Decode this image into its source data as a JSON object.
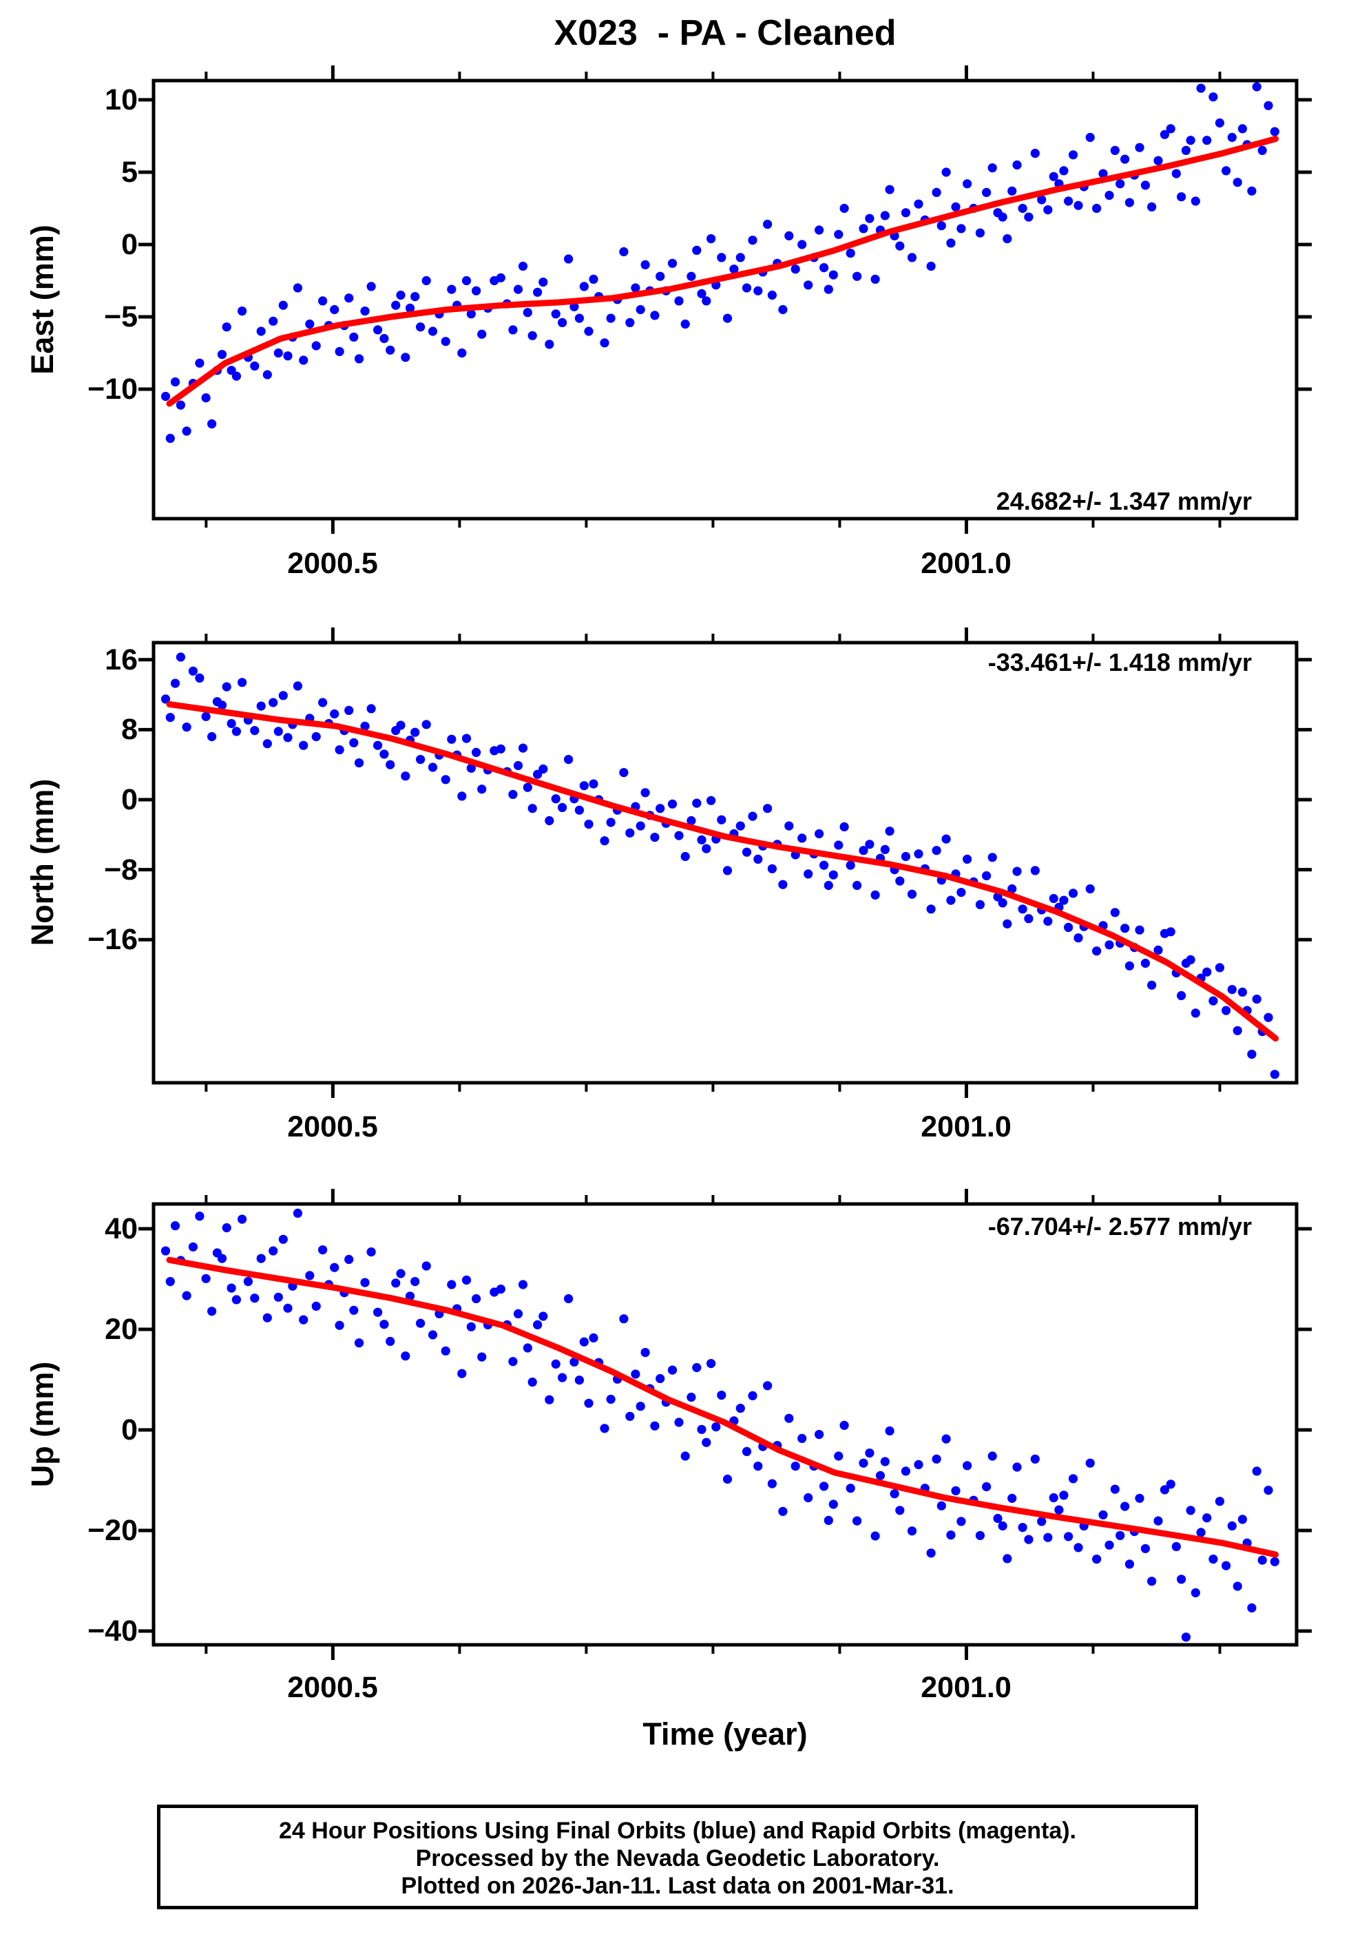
{
  "title": "X023  - PA - Cleaned",
  "colors": {
    "points": "#0000ff",
    "trend": "#ff0000",
    "frame": "#000000"
  },
  "time_axis": {
    "label": "Time (year)",
    "range": [
      2000.3585,
      2001.2606
    ],
    "ticks": [
      {
        "value": 2000.5,
        "label": "2000.5"
      },
      {
        "value": 2001.0,
        "label": "2001.0"
      }
    ],
    "minor_ticks": [
      2000.4,
      2000.6,
      2000.7,
      2000.8,
      2000.9,
      2001.1,
      2001.2
    ]
  },
  "footer": {
    "line1": "24 Hour Positions Using Final Orbits (blue) and Rapid Orbits (magenta).",
    "line2": "Processed by the Nevada Geodetic Laboratory.",
    "line3": "Plotted on 2026-Jan-11. Last data on 2001-Mar-31."
  },
  "chart_data": [
    {
      "type": "scatter",
      "name": "East",
      "ylabel": "East (mm)",
      "annotation": "24.682+/- 1.347 mm/yr",
      "annotation_position": "bottom-right",
      "ylim": [
        -18.95,
        11.33
      ],
      "yticks": [
        10,
        5,
        0,
        -5,
        -10
      ],
      "scatter": {
        "t_start": 2000.368,
        "t_step": 0.0044,
        "values": [
          -10.5,
          -13.4,
          -9.5,
          -11.1,
          -12.9,
          -9.6,
          -8.2,
          -10.6,
          -12.4,
          -8.7,
          -7.6,
          -5.7,
          -8.7,
          -9.1,
          -4.6,
          -7.8,
          -8.4,
          -6.0,
          -9.0,
          -5.3,
          -7.5,
          -4.2,
          -7.7,
          -6.4,
          -3.0,
          -8.0,
          -5.5,
          -7.0,
          -3.9,
          -5.6,
          -4.5,
          -7.4,
          -5.6,
          -3.7,
          -6.4,
          -7.9,
          -4.6,
          -2.9,
          -5.9,
          -6.5,
          -7.3,
          -4.2,
          -3.5,
          -7.8,
          -4.4,
          -3.6,
          -5.7,
          -2.5,
          -6.0,
          -4.8,
          -6.7,
          -3.1,
          -4.2,
          -7.5,
          -2.5,
          -4.8,
          -3.2,
          -6.2,
          -4.4,
          -2.5,
          -2.3,
          -4.1,
          -5.9,
          -3.1,
          -1.5,
          -4.7,
          -6.3,
          -3.3,
          -2.6,
          -6.9,
          -4.8,
          -5.4,
          -1.0,
          -4.3,
          -5.1,
          -2.9,
          -6.0,
          -2.4,
          -3.6,
          -6.8,
          -5.1,
          -3.8,
          -0.5,
          -5.4,
          -3.0,
          -4.5,
          -1.4,
          -3.2,
          -4.9,
          -2.2,
          -3.2,
          -1.3,
          -3.9,
          -5.5,
          -2.2,
          -0.4,
          -3.4,
          -3.9,
          0.4,
          -2.8,
          -0.9,
          -5.1,
          -1.7,
          -0.9,
          -3.0,
          0.3,
          -3.2,
          -1.9,
          1.4,
          -3.5,
          -1.3,
          -4.5,
          0.6,
          -1.7,
          0.0,
          -2.8,
          -0.9,
          1.0,
          -1.6,
          -3.1,
          -2.1,
          0.7,
          2.5,
          -0.6,
          -2.2,
          1.1,
          1.8,
          -2.4,
          1.0,
          2.0,
          3.8,
          0.6,
          -0.1,
          2.2,
          -0.9,
          2.8,
          1.7,
          -1.5,
          3.6,
          1.3,
          5.0,
          0.1,
          2.6,
          1.1,
          4.2,
          2.5,
          0.8,
          3.6,
          5.3,
          2.2,
          1.9,
          0.4,
          3.7,
          5.5,
          2.5,
          1.9,
          6.3,
          3.1,
          2.4,
          4.7,
          4.2,
          5.1,
          3.0,
          6.2,
          2.7,
          4.0,
          7.4,
          2.5,
          4.9,
          3.4,
          6.5,
          4.2,
          5.9,
          2.9,
          4.8,
          6.7,
          4.1,
          2.6,
          5.8,
          7.6,
          8.0,
          4.9,
          3.3,
          6.5,
          7.2,
          3.0,
          10.8,
          7.2,
          10.2,
          8.4,
          5.1,
          7.4,
          4.3,
          8.0,
          6.9,
          3.7,
          10.9,
          6.5,
          9.6,
          7.8
        ]
      },
      "trend": {
        "t": [
          2000.371,
          2000.415,
          2000.459,
          2000.503,
          2000.546,
          2000.59,
          2000.634,
          2000.678,
          2000.721,
          2000.765,
          2000.809,
          2000.852,
          2000.896,
          2000.94,
          2000.983,
          2001.027,
          2001.071,
          2001.115,
          2001.158,
          2001.202,
          2001.244
        ],
        "values": [
          -11.0,
          -8.2,
          -6.5,
          -5.6,
          -5.0,
          -4.5,
          -4.2,
          -4.0,
          -3.7,
          -3.1,
          -2.3,
          -1.5,
          -0.4,
          0.9,
          1.9,
          2.9,
          3.8,
          4.6,
          5.4,
          6.3,
          7.3
        ]
      }
    },
    {
      "type": "scatter",
      "name": "North",
      "ylabel": "North (mm)",
      "annotation": "-33.461+/- 1.418 mm/yr",
      "annotation_position": "top-right",
      "ylim": [
        -32.36,
        17.95
      ],
      "yticks": [
        16,
        8,
        0,
        -8,
        -16
      ],
      "scatter": {
        "t_start": 2000.368,
        "t_step": 0.0044,
        "values": [
          11.5,
          9.4,
          13.3,
          16.3,
          8.3,
          14.7,
          13.9,
          9.5,
          7.2,
          11.2,
          10.8,
          12.9,
          8.7,
          7.8,
          13.4,
          9.1,
          7.9,
          10.7,
          6.4,
          11.1,
          7.8,
          11.9,
          7.1,
          8.6,
          13.0,
          6.2,
          9.3,
          7.2,
          11.1,
          8.7,
          9.8,
          5.7,
          7.9,
          10.2,
          6.5,
          4.2,
          8.4,
          10.4,
          6.2,
          5.2,
          4.0,
          7.9,
          8.5,
          2.7,
          6.8,
          7.7,
          4.6,
          8.6,
          3.7,
          5.1,
          2.3,
          6.9,
          5.1,
          0.4,
          7.0,
          3.6,
          5.4,
          1.2,
          3.4,
          5.6,
          5.8,
          3.2,
          0.6,
          3.9,
          5.9,
          1.4,
          -1.0,
          2.9,
          3.5,
          -2.4,
          0.1,
          -0.9,
          4.6,
          0.1,
          -1.2,
          1.6,
          -2.8,
          1.8,
          0.0,
          -4.7,
          -2.6,
          -1.2,
          3.1,
          -3.8,
          -0.8,
          -3.0,
          0.8,
          -1.8,
          -4.3,
          -1.0,
          -2.7,
          -0.5,
          -4.1,
          -6.5,
          -2.4,
          -0.4,
          -4.6,
          -5.6,
          -0.1,
          -4.5,
          -2.3,
          -8.1,
          -3.9,
          -3.0,
          -6.0,
          -1.9,
          -6.8,
          -5.3,
          -1.0,
          -7.9,
          -5.1,
          -9.7,
          -3.0,
          -6.3,
          -4.4,
          -8.5,
          -6.2,
          -3.9,
          -7.5,
          -9.8,
          -8.6,
          -5.2,
          -3.1,
          -7.5,
          -9.8,
          -5.8,
          -5.1,
          -10.9,
          -6.7,
          -5.7,
          -3.6,
          -8.0,
          -9.3,
          -6.5,
          -10.8,
          -6.2,
          -7.9,
          -12.5,
          -5.8,
          -9.2,
          -4.5,
          -11.5,
          -8.5,
          -10.6,
          -6.8,
          -9.4,
          -12.0,
          -8.7,
          -6.6,
          -11.1,
          -11.8,
          -14.2,
          -10.2,
          -8.2,
          -12.5,
          -13.6,
          -8.1,
          -12.6,
          -13.9,
          -11.3,
          -12.3,
          -11.5,
          -14.6,
          -10.7,
          -15.8,
          -14.5,
          -10.2,
          -17.3,
          -14.4,
          -16.6,
          -12.9,
          -16.4,
          -14.7,
          -19.0,
          -16.9,
          -14.9,
          -18.7,
          -21.2,
          -17.2,
          -15.3,
          -15.1,
          -19.8,
          -22.4,
          -18.7,
          -18.3,
          -24.4,
          -20.4,
          -19.7,
          -23.0,
          -19.2,
          -24.1,
          -21.7,
          -26.4,
          -22.0,
          -24.1,
          -29.1,
          -22.8,
          -26.5,
          -24.9,
          -31.4
        ]
      },
      "trend": {
        "t": [
          2000.371,
          2000.415,
          2000.459,
          2000.503,
          2000.546,
          2000.59,
          2000.634,
          2000.678,
          2000.721,
          2000.765,
          2000.809,
          2000.852,
          2000.896,
          2000.94,
          2000.983,
          2001.027,
          2001.071,
          2001.115,
          2001.158,
          2001.202,
          2001.244
        ],
        "values": [
          10.9,
          10.0,
          9.1,
          8.4,
          7.0,
          5.2,
          3.2,
          1.2,
          -0.7,
          -2.5,
          -4.2,
          -5.4,
          -6.4,
          -7.4,
          -8.7,
          -10.5,
          -12.8,
          -15.5,
          -18.6,
          -22.5,
          -27.3
        ]
      }
    },
    {
      "type": "scatter",
      "name": "Up",
      "ylabel": "Up (mm)",
      "annotation": "-67.704+/- 2.577 mm/yr",
      "annotation_position": "top-right",
      "ylim": [
        -42.74,
        44.93
      ],
      "yticks": [
        40,
        20,
        0,
        -20,
        -40
      ],
      "scatter": {
        "t_start": 2000.368,
        "t_step": 0.0044,
        "values": [
          35.6,
          29.5,
          40.6,
          33.7,
          26.7,
          36.4,
          42.5,
          30.1,
          23.6,
          35.2,
          34.1,
          40.2,
          28.2,
          25.9,
          41.9,
          29.5,
          26.2,
          34.1,
          22.3,
          35.6,
          26.4,
          37.9,
          24.2,
          28.6,
          43.1,
          21.9,
          30.7,
          24.6,
          35.8,
          28.9,
          32.3,
          20.8,
          27.3,
          33.9,
          23.8,
          17.3,
          29.3,
          35.4,
          23.4,
          21.0,
          17.6,
          29.2,
          31.1,
          14.7,
          26.6,
          29.5,
          21.2,
          32.6,
          18.9,
          23.1,
          15.7,
          28.9,
          24.1,
          11.2,
          29.8,
          20.5,
          26.1,
          14.5,
          20.9,
          27.4,
          28.0,
          20.9,
          13.6,
          23.1,
          28.9,
          16.3,
          9.5,
          20.9,
          22.6,
          6.0,
          13.1,
          10.4,
          26.1,
          13.5,
          9.9,
          17.5,
          5.3,
          18.3,
          13.4,
          0.3,
          6.1,
          10.1,
          22.1,
          2.7,
          11.1,
          4.7,
          15.4,
          8.2,
          0.8,
          10.2,
          5.5,
          11.9,
          1.5,
          -5.2,
          6.5,
          12.4,
          0.1,
          -2.5,
          13.2,
          0.6,
          6.9,
          -9.8,
          1.8,
          4.3,
          -4.3,
          6.8,
          -7.2,
          -3.3,
          8.8,
          -10.7,
          -3.1,
          -16.2,
          2.3,
          -7.2,
          -1.7,
          -13.5,
          -7.2,
          -0.9,
          -11.2,
          -18.0,
          -14.8,
          -5.2,
          0.9,
          -11.6,
          -18.1,
          -6.6,
          -4.6,
          -21.1,
          -9.1,
          -6.3,
          -0.2,
          -12.7,
          -16.0,
          -8.2,
          -20.1,
          -6.9,
          -11.6,
          -24.5,
          -5.8,
          -15.1,
          -1.8,
          -20.9,
          -12.1,
          -18.2,
          -7.1,
          -14.0,
          -21.0,
          -11.3,
          -5.2,
          -17.6,
          -19.1,
          -25.6,
          -13.6,
          -7.4,
          -19.4,
          -21.8,
          -5.8,
          -18.2,
          -21.4,
          -13.5,
          -15.9,
          -13.0,
          -21.2,
          -9.7,
          -23.4,
          -19.1,
          -6.6,
          -25.7,
          -16.9,
          -22.9,
          -11.8,
          -21.0,
          -15.2,
          -26.7,
          -20.2,
          -13.6,
          -23.6,
          -30.1,
          -18.1,
          -11.9,
          -10.8,
          -23.2,
          -29.7,
          -41.2,
          -16.0,
          -32.4,
          -20.4,
          -17.5,
          -25.7,
          -14.2,
          -27.0,
          -19.1,
          -31.1,
          -17.8,
          -22.5,
          -35.4,
          -8.2,
          -25.9,
          -12.0,
          -26.2
        ]
      },
      "trend": {
        "t": [
          2000.371,
          2000.415,
          2000.459,
          2000.503,
          2000.546,
          2000.59,
          2000.634,
          2000.678,
          2000.721,
          2000.765,
          2000.809,
          2000.852,
          2000.896,
          2000.94,
          2000.983,
          2001.027,
          2001.071,
          2001.115,
          2001.158,
          2001.202,
          2001.244
        ],
        "values": [
          33.8,
          31.8,
          30.0,
          28.2,
          26.2,
          23.8,
          20.8,
          16.3,
          11.5,
          6.0,
          1.5,
          -4.0,
          -8.5,
          -11.0,
          -13.5,
          -15.5,
          -17.3,
          -19.0,
          -20.7,
          -22.5,
          -24.8
        ]
      }
    }
  ]
}
